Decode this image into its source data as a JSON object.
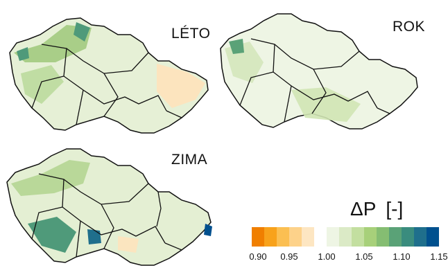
{
  "panels": [
    {
      "title": "LÉTO"
    },
    {
      "title": "ROK"
    },
    {
      "title": "ZIMA"
    }
  ],
  "legend": {
    "symbol": "ΔP",
    "unit": "[-]",
    "colors": [
      "#f07f00",
      "#f8a21b",
      "#fbbf52",
      "#fdd28a",
      "#fde6c2",
      "#ffffff",
      "#eef5e4",
      "#dbeac6",
      "#c3dfa0",
      "#a7d07a",
      "#85bd72",
      "#5aa277",
      "#3a8c7e",
      "#1f6f8c",
      "#00508e"
    ],
    "tick_labels": [
      "0.90",
      "0.95",
      "1.00",
      "1.05",
      "1.10",
      "1.15"
    ]
  },
  "map_colors": {
    "border": "#111111",
    "district_line": "#ffffff",
    "bg_panels": [
      "#cfe3ae",
      "#e2eed2",
      "#c8e0a0"
    ]
  }
}
